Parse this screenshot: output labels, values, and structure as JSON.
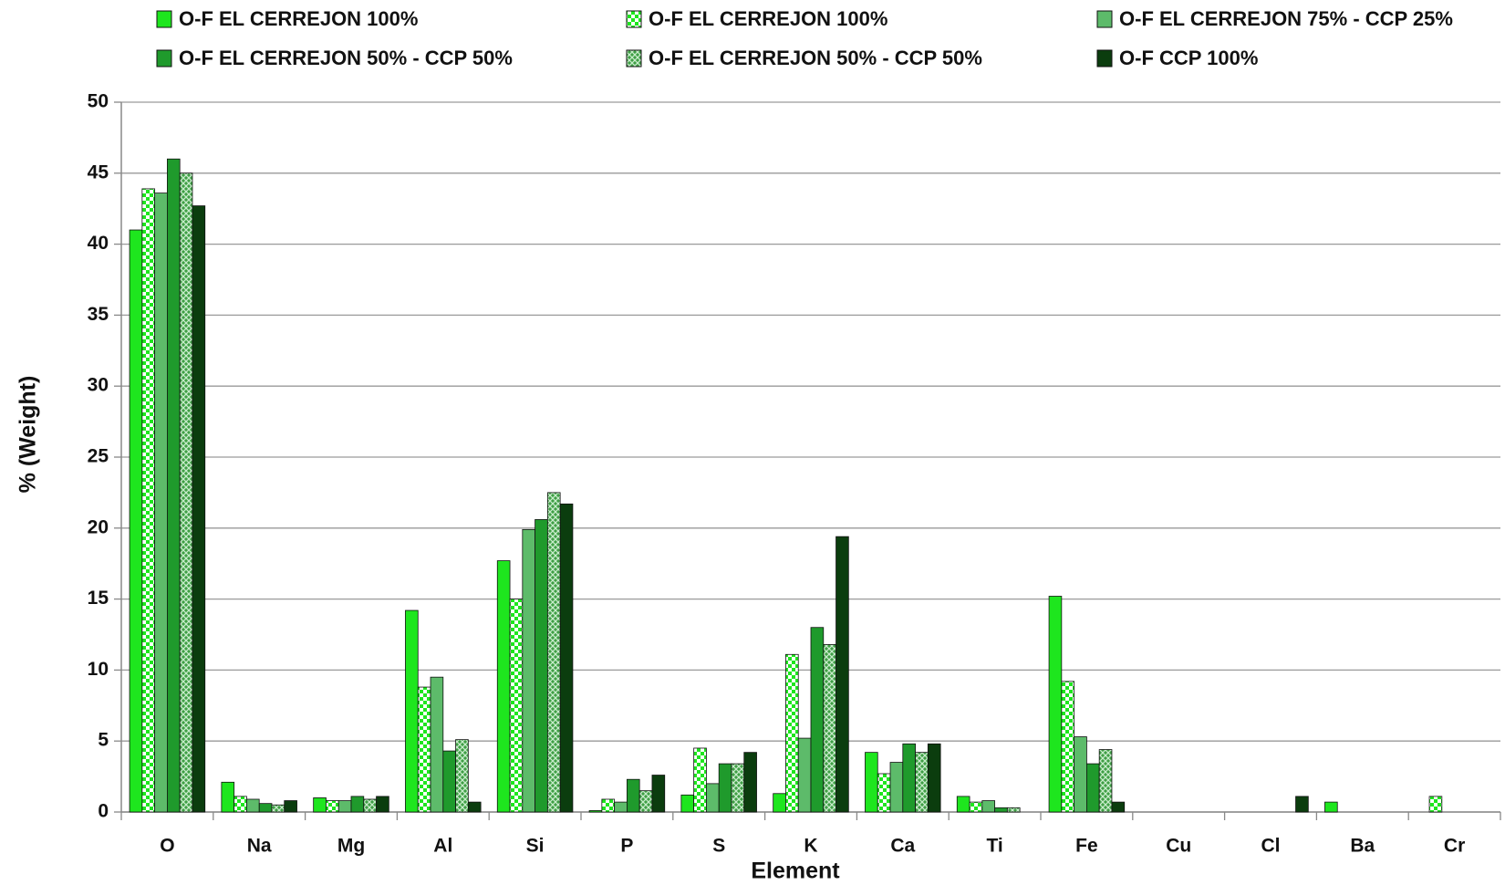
{
  "chart_data": {
    "type": "bar",
    "x_label": "Element",
    "y_label": "% (Weight)",
    "categories": [
      "O",
      "Na",
      "Mg",
      "Al",
      "Si",
      "P",
      "S",
      "K",
      "Ca",
      "Ti",
      "Fe",
      "Cu",
      "Cl",
      "Ba",
      "Cr"
    ],
    "series": [
      {
        "name": "O-F EL CERREJON 100%",
        "color": "#1ee61e",
        "values": [
          41.0,
          2.1,
          1.0,
          14.2,
          17.7,
          0.1,
          1.2,
          1.3,
          4.2,
          1.1,
          15.2,
          null,
          null,
          0.7,
          null
        ]
      },
      {
        "name": "O-F EL CERREJON 100%",
        "color": "#1ee61e",
        "pattern": "checker",
        "values": [
          43.9,
          1.1,
          0.8,
          8.8,
          15.0,
          0.9,
          4.5,
          11.1,
          2.7,
          0.7,
          9.2,
          null,
          null,
          null,
          1.1
        ]
      },
      {
        "name": "O-F EL CERREJON 75% - CCP 25%",
        "color": "#5dbb6a",
        "values": [
          43.6,
          0.9,
          0.8,
          9.5,
          19.9,
          0.7,
          2.0,
          5.2,
          3.5,
          0.8,
          5.3,
          null,
          null,
          null,
          null
        ]
      },
      {
        "name": "O-F EL CERREJON 50% - CCP 50%",
        "color": "#1f9a2c",
        "values": [
          46.0,
          0.6,
          1.1,
          4.3,
          20.6,
          2.3,
          3.4,
          13.0,
          4.8,
          0.3,
          3.4,
          null,
          null,
          null,
          null
        ]
      },
      {
        "name": "O-F EL CERREJON 50% - CCP 50%",
        "color": "#3f9f45",
        "pattern": "crosshatch",
        "values": [
          45.0,
          0.5,
          0.9,
          5.1,
          22.5,
          1.5,
          3.4,
          11.8,
          4.2,
          0.3,
          4.4,
          null,
          null,
          null,
          null
        ]
      },
      {
        "name": "O-F CCP 100%",
        "color": "#0b3d0e",
        "values": [
          42.7,
          0.8,
          1.1,
          0.7,
          21.7,
          2.6,
          4.2,
          19.4,
          4.8,
          null,
          0.7,
          null,
          1.1,
          null,
          null
        ]
      }
    ],
    "ylim": [
      0,
      50
    ],
    "yticks": [
      0,
      5,
      10,
      15,
      20,
      25,
      30,
      35,
      40,
      45,
      50
    ],
    "grid": true,
    "legend": "top"
  }
}
